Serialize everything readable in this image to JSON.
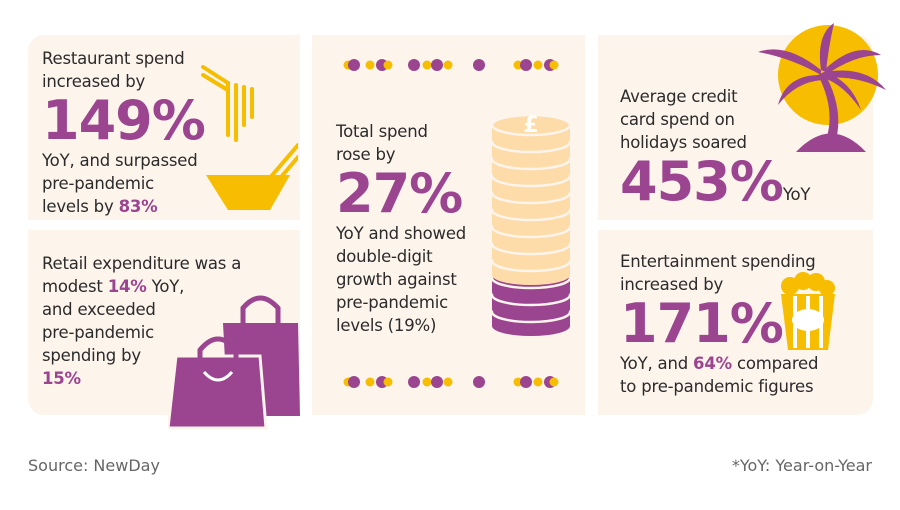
{
  "colors": {
    "purple": "#9b4490",
    "yellow": "#f7bd00",
    "card_bg": "#fdf4ec",
    "coin": "#fddcaa"
  },
  "restaurant": {
    "line1": "Restaurant spend",
    "line2": "increased by",
    "value": "149%",
    "line3": "YoY, and surpassed",
    "line4": "pre-pandemic",
    "line5": "levels by ",
    "highlight": "83%",
    "icon": "noodle-bowl-icon"
  },
  "retail": {
    "line1": "Retail expenditure was a",
    "line2a": "modest ",
    "highlight1": "14%",
    "line2b": " YoY,",
    "line3": "and exceeded",
    "line4": "pre-pandemic",
    "line5": "spending by",
    "highlight2": "15%",
    "icon": "shopping-bags-icon"
  },
  "total": {
    "line1": "Total spend",
    "line2": "rose by",
    "value": "27%",
    "line3": "YoY and showed",
    "line4": "double-digit",
    "line5": "growth against",
    "line6": "pre-pandemic",
    "line7": "levels (19%)",
    "icon": "coin-stack-icon"
  },
  "holidays": {
    "line1": "Average credit",
    "line2": "card spend on",
    "line3": "holidays soared",
    "value": "453%",
    "suffix": "YoY",
    "icon": "palm-tree-sun-icon"
  },
  "entertainment": {
    "line1": "Entertainment spending",
    "line2": "increased by",
    "value": "171%",
    "line3a": "YoY, and ",
    "highlight": "64%",
    "line3b": " compared",
    "line4": "to pre-pandemic figures",
    "icon": "popcorn-icon"
  },
  "footer": {
    "source": "Source: NewDay",
    "note": "*YoY: Year-on-Year"
  }
}
